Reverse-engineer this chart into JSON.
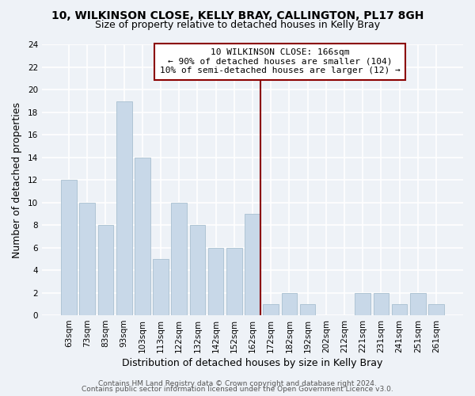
{
  "title": "10, WILKINSON CLOSE, KELLY BRAY, CALLINGTON, PL17 8GH",
  "subtitle": "Size of property relative to detached houses in Kelly Bray",
  "xlabel": "Distribution of detached houses by size in Kelly Bray",
  "ylabel": "Number of detached properties",
  "bar_color": "#c8d8e8",
  "bar_edge_color": "#a8c0d0",
  "bins": [
    "63sqm",
    "73sqm",
    "83sqm",
    "93sqm",
    "103sqm",
    "113sqm",
    "122sqm",
    "132sqm",
    "142sqm",
    "152sqm",
    "162sqm",
    "172sqm",
    "182sqm",
    "192sqm",
    "202sqm",
    "212sqm",
    "221sqm",
    "231sqm",
    "241sqm",
    "251sqm",
    "261sqm"
  ],
  "counts": [
    12,
    10,
    8,
    19,
    14,
    5,
    10,
    8,
    6,
    6,
    9,
    1,
    2,
    1,
    0,
    0,
    2,
    2,
    1,
    2,
    1
  ],
  "vline_color": "#8b0000",
  "annotation_line1": "10 WILKINSON CLOSE: 166sqm",
  "annotation_line2": "← 90% of detached houses are smaller (104)",
  "annotation_line3": "10% of semi-detached houses are larger (12) →",
  "annotation_box_facecolor": "#ffffff",
  "annotation_box_edge": "#8b0000",
  "ylim": [
    0,
    24
  ],
  "yticks": [
    0,
    2,
    4,
    6,
    8,
    10,
    12,
    14,
    16,
    18,
    20,
    22,
    24
  ],
  "footer1": "Contains HM Land Registry data © Crown copyright and database right 2024.",
  "footer2": "Contains public sector information licensed under the Open Government Licence v3.0.",
  "background_color": "#eef2f7",
  "plot_bg_color": "#eef2f7",
  "grid_color": "#ffffff",
  "title_fontsize": 10,
  "subtitle_fontsize": 9,
  "axis_label_fontsize": 9,
  "tick_fontsize": 7.5,
  "annotation_fontsize": 8,
  "footer_fontsize": 6.5
}
